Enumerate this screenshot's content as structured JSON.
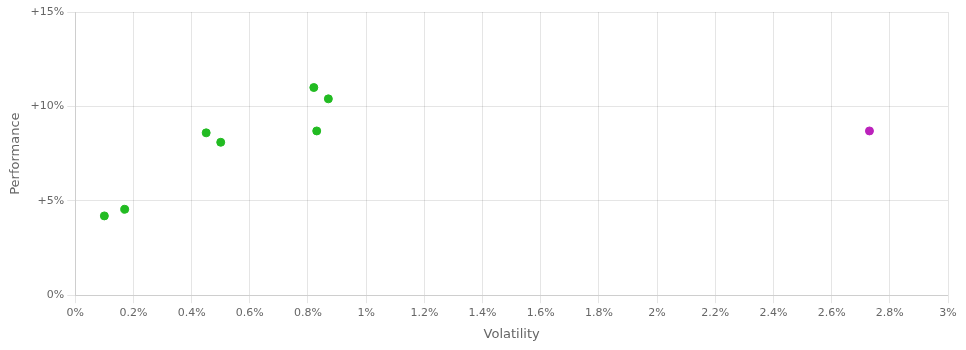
{
  "chart_data": {
    "type": "scatter",
    "xlabel": "Volatility",
    "ylabel": "Performance",
    "series": [
      {
        "color": "#22bb22",
        "marker": "circle",
        "x": [
          0.1,
          0.17,
          0.45,
          0.5,
          0.82,
          0.87,
          0.83
        ],
        "values": [
          4.2,
          4.55,
          8.6,
          8.1,
          11.0,
          10.4,
          8.7
        ]
      },
      {
        "color": "#bb22bb",
        "marker": "circle",
        "x": [
          2.73
        ],
        "values": [
          8.7
        ]
      }
    ],
    "xlim": [
      0,
      3.0
    ],
    "xticks": [
      {
        "value": 0,
        "label": "0%"
      },
      {
        "value": 0.2,
        "label": "0.2%"
      },
      {
        "value": 0.4,
        "label": "0.4%"
      },
      {
        "value": 0.6,
        "label": "0.6%"
      },
      {
        "value": 0.8,
        "label": "0.8%"
      },
      {
        "value": 1.0,
        "label": "1%"
      },
      {
        "value": 1.2,
        "label": "1.2%"
      },
      {
        "value": 1.4,
        "label": "1.4%"
      },
      {
        "value": 1.6,
        "label": "1.6%"
      },
      {
        "value": 1.8,
        "label": "1.8%"
      },
      {
        "value": 2.0,
        "label": "2%"
      },
      {
        "value": 2.2,
        "label": "2.2%"
      },
      {
        "value": 2.4,
        "label": "2.4%"
      },
      {
        "value": 2.6,
        "label": "2.6%"
      },
      {
        "value": 2.8,
        "label": "2.8%"
      },
      {
        "value": 3.0,
        "label": "3%"
      }
    ],
    "ylim": [
      0,
      15
    ],
    "yticks": [
      {
        "value": 0,
        "label": "0%"
      },
      {
        "value": 5,
        "label": "+5%"
      },
      {
        "value": 10,
        "label": "+10%"
      },
      {
        "value": 15,
        "label": "+15%"
      }
    ],
    "grid": true
  }
}
